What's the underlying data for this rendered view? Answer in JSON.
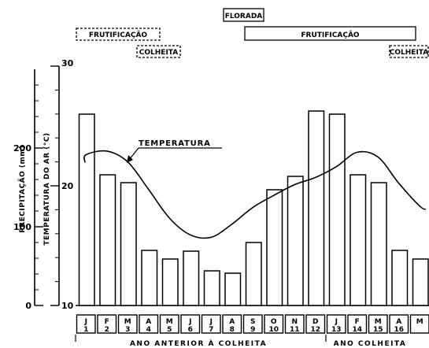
{
  "chart_data": {
    "type": "bar",
    "annotations": {
      "florada": "FLORADA",
      "frutificacao_prev": "FRUTIFICAÇÃO",
      "colheita_prev": "COLHEITA",
      "frutificacao_cur": "FRUTIFICAÇÃO",
      "colheita_cur": "COLHEITA",
      "temperatura": "TEMPERATURA"
    },
    "ylabel_precip": "PRECIPITAÇÃO (mm)",
    "ylabel_temp": "TEMPERATURA DO AR (°C)",
    "precip_ticks": [
      "0",
      "100",
      "200"
    ],
    "temp_ticks": [
      "10",
      "20",
      "30"
    ],
    "precip_ylim": [
      0,
      300
    ],
    "temp_ylim": [
      10,
      30
    ],
    "months": [
      {
        "letter": "J",
        "num": "1"
      },
      {
        "letter": "F",
        "num": "2"
      },
      {
        "letter": "M",
        "num": "3"
      },
      {
        "letter": "A",
        "num": "4"
      },
      {
        "letter": "M",
        "num": "5"
      },
      {
        "letter": "J",
        "num": "6"
      },
      {
        "letter": "J",
        "num": "7"
      },
      {
        "letter": "A",
        "num": "8"
      },
      {
        "letter": "S",
        "num": "9"
      },
      {
        "letter": "O",
        "num": "10"
      },
      {
        "letter": "N",
        "num": "11"
      },
      {
        "letter": "D",
        "num": "12"
      },
      {
        "letter": "J",
        "num": "13"
      },
      {
        "letter": "F",
        "num": "14"
      },
      {
        "letter": "M",
        "num": "15"
      },
      {
        "letter": "A",
        "num": "16"
      },
      {
        "letter": "M",
        "num": ""
      }
    ],
    "precip_values": [
      243,
      166,
      156,
      70,
      59,
      69,
      44,
      41,
      80,
      147,
      164,
      247,
      243,
      166,
      156,
      70,
      59
    ],
    "temp_values": [
      22.6,
      22.9,
      22.0,
      19.7,
      17.3,
      15.9,
      15.7,
      16.8,
      18.2,
      19.2,
      20.1,
      20.7,
      21.6,
      22.8,
      22.4,
      20.2,
      18.3
    ],
    "group_labels": {
      "previous": "ANO ANTERIOR À COLHEITA",
      "current": "ANO COLHEITA"
    }
  }
}
